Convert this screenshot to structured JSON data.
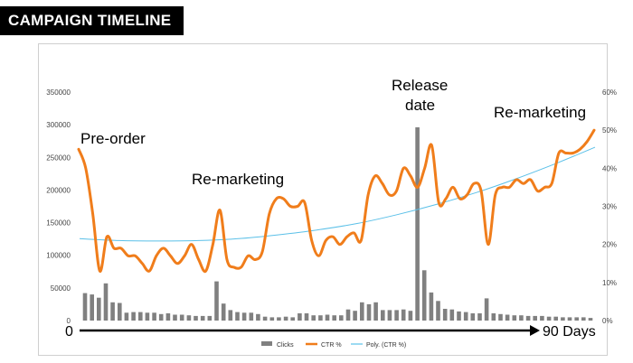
{
  "title": "CAMPAIGN TIMELINE",
  "chart_data": {
    "type": "bar+line",
    "title": "CAMPAIGN TIMELINE",
    "y_left": {
      "min": 0,
      "max": 350000,
      "ticks": [
        "350000",
        "300000",
        "250000",
        "200000",
        "150000",
        "100000",
        "50000",
        "0"
      ]
    },
    "y_right": {
      "min": 0,
      "max": 60,
      "ticks": [
        "60%",
        "50%",
        "40%",
        "30%",
        "20%",
        "10%",
        "0%"
      ]
    },
    "x_axis": {
      "start_label": "0",
      "end_label": "90 Days",
      "days": 90
    },
    "series": [
      {
        "name": "Clicks",
        "type": "bar",
        "axis": "left",
        "color": "#808080",
        "values": [
          42000,
          40000,
          35000,
          57000,
          28000,
          27000,
          12000,
          13000,
          13000,
          12000,
          12000,
          10000,
          11000,
          9000,
          9000,
          8000,
          7000,
          7000,
          7000,
          60000,
          26000,
          16000,
          13000,
          12000,
          12000,
          10000,
          6000,
          5000,
          5000,
          6000,
          5000,
          11000,
          11000,
          8000,
          8000,
          9000,
          8000,
          8000,
          17000,
          15000,
          28000,
          25000,
          28000,
          16000,
          16000,
          16000,
          17000,
          15000,
          296000,
          77000,
          43000,
          30000,
          18000,
          17000,
          14000,
          13000,
          11000,
          11000,
          34000,
          11000,
          10000,
          9000,
          8000,
          8000,
          7000,
          7000,
          7000,
          6000,
          6000,
          5000,
          5000,
          5000,
          5000,
          4000
        ]
      },
      {
        "name": "CTR %",
        "type": "line",
        "axis": "right",
        "color": "#f07d1b",
        "values": [
          45,
          40,
          28,
          13,
          22,
          19,
          19,
          17,
          17,
          15,
          13,
          17,
          19,
          17,
          15,
          17,
          20,
          16,
          13,
          20,
          29,
          16,
          14,
          14,
          17,
          16,
          18,
          28,
          32,
          32,
          30,
          30,
          31,
          21,
          17,
          21,
          22,
          20,
          22,
          23,
          21,
          33,
          38,
          36,
          33,
          34,
          40,
          38,
          35,
          40,
          46,
          31,
          32,
          35,
          32,
          33,
          36,
          34,
          20,
          33,
          35,
          35,
          37,
          36,
          37,
          34,
          35,
          36,
          44,
          44,
          44,
          45,
          47,
          50
        ]
      },
      {
        "name": "Poly. (CTR %)",
        "type": "line",
        "axis": "right",
        "color": "#5bc0e8",
        "values": [
          21.5,
          21.0,
          20.9,
          21.0,
          21.5,
          22.5,
          23.8,
          25.5,
          27.8,
          30.5,
          33.6,
          37.2,
          41.2,
          45.5
        ]
      }
    ],
    "annotations": [
      {
        "text": "Pre-order"
      },
      {
        "text": "Re-marketing"
      },
      {
        "text": "Release"
      },
      {
        "text": "date"
      },
      {
        "text": "Re-marketing"
      }
    ],
    "legend": {
      "placement": "bottom",
      "items": [
        "Clicks",
        "CTR %",
        "Poly. (CTR %)"
      ]
    }
  }
}
